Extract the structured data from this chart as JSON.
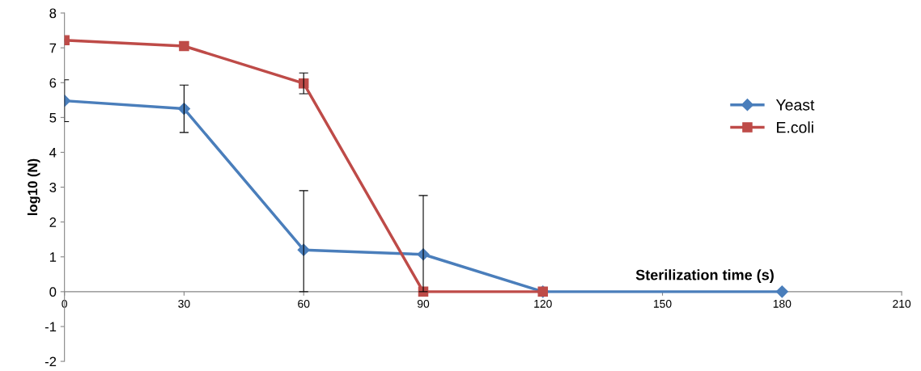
{
  "chart_data": {
    "type": "line",
    "xlabel": "Sterilization time (s)",
    "ylabel": "log10 (N)",
    "xlim": [
      0,
      210
    ],
    "xticks": [
      0,
      30,
      60,
      90,
      120,
      150,
      180,
      210
    ],
    "ylim": [
      -2,
      8
    ],
    "yticks": [
      -2,
      -1,
      0,
      1,
      2,
      3,
      4,
      5,
      6,
      7,
      8
    ],
    "grid": false,
    "legend": "right",
    "line_style": "solid",
    "series": [
      {
        "name": "Yeast",
        "color": "#4a7ebb",
        "marker": "diamond",
        "x": [
          0,
          30,
          60,
          90,
          120,
          180
        ],
        "values": [
          5.48,
          5.25,
          1.2,
          1.07,
          0,
          0
        ],
        "errors": [
          0.6,
          0.68,
          [
            0,
            2.9
          ],
          [
            0,
            2.76
          ],
          null,
          null
        ]
      },
      {
        "name": "E.coli",
        "color": "#be4b48",
        "marker": "square",
        "x": [
          0,
          30,
          60,
          90,
          120
        ],
        "values": [
          7.22,
          7.05,
          5.98,
          0,
          0
        ],
        "errors": [
          null,
          null,
          0.3,
          null,
          null
        ]
      }
    ]
  }
}
